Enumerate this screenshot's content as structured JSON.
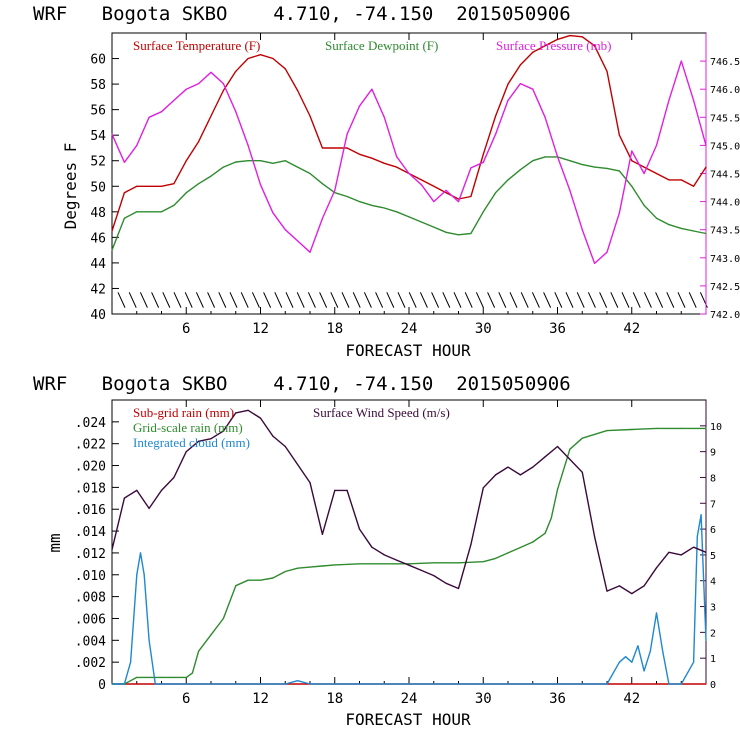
{
  "colors": {
    "temp": "#c00000",
    "dew": "#2e8b2e",
    "pressure": "#e020e0",
    "subgrid": "#c00000",
    "gridscale": "#2e8b2e",
    "cloud": "#1e88d0",
    "wind": "#3a0a3a",
    "axis": "#000000"
  },
  "chart_data": [
    {
      "type": "line",
      "title": "WRF   Bogota SKBO    4.710, -74.150  2015050906",
      "xlabel": "FORECAST HOUR",
      "ylabel": "Degrees F",
      "xlim": [
        0,
        48
      ],
      "ylim": [
        40,
        62
      ],
      "y2lim": [
        742.0,
        747.0
      ],
      "x_ticks": [
        6,
        12,
        18,
        24,
        30,
        36,
        42
      ],
      "y_ticks": [
        40,
        42,
        44,
        46,
        48,
        50,
        52,
        54,
        56,
        58,
        60
      ],
      "y2_ticks": [
        "742.0",
        "742.5",
        "743.0",
        "743.5",
        "744.0",
        "744.5",
        "745.0",
        "745.5",
        "746.0",
        "746.5"
      ],
      "legend": [
        "Surface Temperature (F)",
        "Surface Dewpoint (F)",
        "Surface Pressure (mb)"
      ],
      "series": [
        {
          "name": "Surface Temperature (F)",
          "axis": "left",
          "x": [
            0,
            1,
            2,
            3,
            4,
            5,
            6,
            7,
            8,
            9,
            10,
            11,
            12,
            13,
            14,
            15,
            16,
            17,
            18,
            19,
            20,
            21,
            22,
            23,
            24,
            25,
            26,
            27,
            28,
            29,
            30,
            31,
            32,
            33,
            34,
            35,
            36,
            37,
            38,
            39,
            40,
            41,
            42,
            43,
            44,
            45,
            46,
            47,
            48
          ],
          "values": [
            46.5,
            49.5,
            50,
            50,
            50,
            50.2,
            52,
            53.5,
            55.5,
            57.5,
            59,
            60,
            60.3,
            60,
            59.2,
            57.5,
            55.5,
            53,
            53,
            53,
            52.5,
            52.2,
            51.8,
            51.5,
            51,
            50.5,
            50,
            49.5,
            49,
            49.2,
            52.5,
            55.5,
            58,
            59.5,
            60.5,
            61,
            61.5,
            61.8,
            61.7,
            61,
            59,
            54,
            52,
            51.5,
            51,
            50.5,
            50.5,
            50,
            51.5
          ]
        },
        {
          "name": "Surface Dewpoint (F)",
          "axis": "left",
          "x": [
            0,
            1,
            2,
            3,
            4,
            5,
            6,
            7,
            8,
            9,
            10,
            11,
            12,
            13,
            14,
            15,
            16,
            17,
            18,
            19,
            20,
            21,
            22,
            23,
            24,
            25,
            26,
            27,
            28,
            29,
            30,
            31,
            32,
            33,
            34,
            35,
            36,
            37,
            38,
            39,
            40,
            41,
            42,
            43,
            44,
            45,
            46,
            47,
            48
          ],
          "values": [
            45,
            47.5,
            48,
            48,
            48,
            48.5,
            49.5,
            50.2,
            50.8,
            51.5,
            51.9,
            52,
            52,
            51.8,
            52,
            51.5,
            51,
            50.2,
            49.5,
            49.2,
            48.8,
            48.5,
            48.3,
            48,
            47.6,
            47.2,
            46.8,
            46.4,
            46.2,
            46.3,
            48,
            49.5,
            50.5,
            51.3,
            52,
            52.3,
            52.3,
            52,
            51.7,
            51.5,
            51.4,
            51.2,
            50,
            48.5,
            47.5,
            47,
            46.7,
            46.5,
            46.3
          ]
        },
        {
          "name": "Surface Pressure (mb)",
          "axis": "right",
          "x": [
            0,
            1,
            2,
            3,
            4,
            5,
            6,
            7,
            8,
            9,
            10,
            11,
            12,
            13,
            14,
            15,
            16,
            17,
            18,
            19,
            20,
            21,
            22,
            23,
            24,
            25,
            26,
            27,
            28,
            29,
            30,
            31,
            32,
            33,
            34,
            35,
            36,
            37,
            38,
            39,
            40,
            41,
            42,
            43,
            44,
            45,
            46,
            47,
            48
          ],
          "values": [
            745.2,
            744.7,
            745.0,
            745.5,
            745.6,
            745.8,
            746.0,
            746.1,
            746.3,
            746.1,
            745.6,
            745.0,
            744.3,
            743.8,
            743.5,
            743.3,
            743.1,
            743.7,
            744.2,
            745.2,
            745.7,
            746.0,
            745.5,
            744.8,
            744.5,
            744.3,
            744.0,
            744.2,
            744.0,
            744.6,
            744.7,
            745.2,
            745.8,
            746.1,
            746.0,
            745.5,
            744.8,
            744.2,
            743.5,
            742.9,
            743.1,
            743.8,
            744.9,
            744.5,
            745.0,
            745.8,
            746.5,
            745.8,
            745.0
          ]
        }
      ],
      "grid": false
    },
    {
      "type": "line",
      "title": "WRF   Bogota SKBO    4.710, -74.150  2015050906",
      "xlabel": "FORECAST HOUR",
      "ylabel": "mm",
      "xlim": [
        0,
        48
      ],
      "ylim": [
        0,
        0.026
      ],
      "y2lim": [
        0,
        11
      ],
      "x_ticks": [
        6,
        12,
        18,
        24,
        30,
        36,
        42
      ],
      "y_ticks": [
        "0",
        ".002",
        ".004",
        ".006",
        ".008",
        ".010",
        ".012",
        ".014",
        ".016",
        ".018",
        ".020",
        ".022",
        ".024"
      ],
      "y2_ticks": [
        "0",
        "1",
        "2",
        "3",
        "4",
        "5",
        "6",
        "7",
        "8",
        "9",
        "10"
      ],
      "legend": [
        "Sub-grid rain (mm)",
        "Surface Wind Speed (m/s)",
        "Grid-scale rain (mm)",
        "Integrated cloud (mm)"
      ],
      "series": [
        {
          "name": "Sub-grid rain (mm)",
          "axis": "left",
          "x": [
            0,
            48
          ],
          "values": [
            0,
            0
          ]
        },
        {
          "name": "Grid-scale rain (mm)",
          "axis": "left",
          "x": [
            0,
            1,
            2,
            3,
            4,
            5,
            6,
            6.5,
            7,
            8,
            9,
            10,
            11,
            12,
            13,
            14,
            15,
            16,
            17,
            18,
            20,
            22,
            24,
            26,
            28,
            30,
            31,
            32,
            33,
            34,
            35,
            35.5,
            36,
            37,
            38,
            40,
            42,
            44,
            46,
            48
          ],
          "values": [
            0,
            0,
            0.0006,
            0.0006,
            0.0006,
            0.0006,
            0.0006,
            0.001,
            0.003,
            0.0045,
            0.006,
            0.009,
            0.0095,
            0.0095,
            0.0097,
            0.0103,
            0.0106,
            0.0107,
            0.0108,
            0.0109,
            0.011,
            0.011,
            0.011,
            0.0111,
            0.0111,
            0.0112,
            0.0115,
            0.012,
            0.0125,
            0.013,
            0.0138,
            0.0152,
            0.0178,
            0.0215,
            0.0225,
            0.0232,
            0.0233,
            0.0234,
            0.0234,
            0.0234
          ]
        },
        {
          "name": "Integrated cloud (mm)",
          "axis": "left",
          "x": [
            0,
            1,
            1.5,
            2,
            2.3,
            2.6,
            3,
            3.5,
            4,
            5,
            10,
            14,
            15,
            16,
            20,
            40,
            41,
            41.5,
            42,
            42.5,
            43,
            43.5,
            44,
            44.5,
            45,
            46,
            47,
            47.3,
            47.6,
            48
          ],
          "values": [
            0,
            0,
            0.002,
            0.01,
            0.012,
            0.01,
            0.004,
            0,
            0,
            0,
            0,
            0,
            0.0003,
            0,
            0,
            0,
            0.002,
            0.0025,
            0.002,
            0.0035,
            0.0012,
            0.003,
            0.0065,
            0.003,
            0,
            0,
            0.002,
            0.0135,
            0.0155,
            0.004
          ]
        },
        {
          "name": "Surface Wind Speed (m/s)",
          "axis": "right",
          "x": [
            0,
            1,
            2,
            3,
            4,
            5,
            6,
            7,
            8,
            9,
            10,
            11,
            12,
            13,
            14,
            15,
            16,
            17,
            18,
            19,
            20,
            21,
            22,
            23,
            24,
            25,
            26,
            27,
            28,
            29,
            30,
            31,
            32,
            33,
            34,
            35,
            36,
            37,
            38,
            39,
            40,
            41,
            42,
            43,
            44,
            45,
            46,
            47,
            48
          ],
          "values": [
            5.2,
            7.2,
            7.5,
            6.8,
            7.5,
            8,
            9,
            9.4,
            9.5,
            9.8,
            10.5,
            10.6,
            10.3,
            9.6,
            9.2,
            8.5,
            7.8,
            5.8,
            7.5,
            7.5,
            6.0,
            5.3,
            5.0,
            4.8,
            4.6,
            4.4,
            4.2,
            3.9,
            3.7,
            5.4,
            7.6,
            8.1,
            8.4,
            8.1,
            8.4,
            8.8,
            9.2,
            8.7,
            8.2,
            5.7,
            3.6,
            3.8,
            3.5,
            3.8,
            4.5,
            5.1,
            5.0,
            5.3,
            5.1
          ]
        }
      ],
      "grid": false
    }
  ]
}
